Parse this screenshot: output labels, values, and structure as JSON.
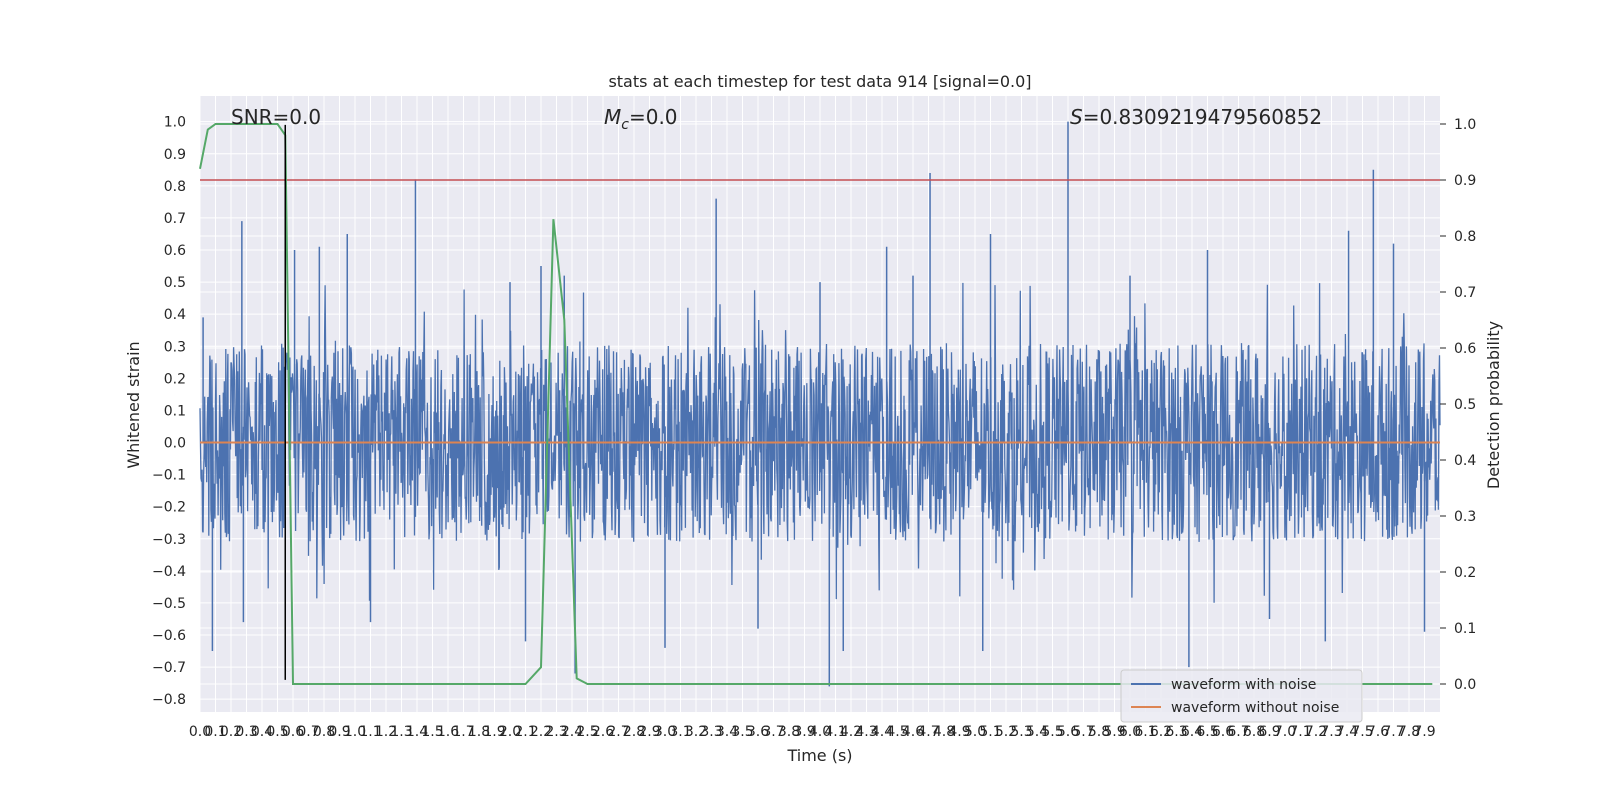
{
  "chart_data": {
    "type": "line",
    "title": "stats at each timestep for test data 914 [signal=0.0]",
    "xlabel": "Time (s)",
    "ylabel_left": "Whitened strain",
    "ylabel_right": "Detection probability",
    "xlim": [
      0.0,
      8.0
    ],
    "ylim_left": [
      -0.84,
      1.08
    ],
    "ylim_right": [
      -0.05,
      1.05
    ],
    "x_ticks": [
      0.0,
      0.1,
      0.2,
      0.3,
      0.4,
      0.5,
      0.6,
      0.7,
      0.8,
      0.9,
      1.0,
      1.1,
      1.2,
      1.3,
      1.4,
      1.5,
      1.6,
      1.7,
      1.8,
      1.9,
      2.0,
      2.1,
      2.2,
      2.3,
      2.4,
      2.5,
      2.6,
      2.7,
      2.8,
      2.9,
      3.0,
      3.1,
      3.2,
      3.3,
      3.4,
      3.5,
      3.6,
      3.7,
      3.8,
      3.9,
      4.0,
      4.1,
      4.2,
      4.3,
      4.4,
      4.5,
      4.6,
      4.7,
      4.8,
      4.9,
      5.0,
      5.1,
      5.2,
      5.3,
      5.4,
      5.5,
      5.6,
      5.7,
      5.8,
      5.9,
      6.0,
      6.1,
      6.2,
      6.3,
      6.4,
      6.5,
      6.6,
      6.7,
      6.8,
      6.9,
      7.0,
      7.1,
      7.2,
      7.3,
      7.4,
      7.5,
      7.6,
      7.7,
      7.8,
      7.9
    ],
    "x_tick_labels": [
      "0.0",
      "0.1",
      "0.2",
      "0.3",
      "0.4",
      "0.5",
      "0.6",
      "0.7",
      "0.8",
      "0.9",
      "1.0",
      "1.1",
      "1.2",
      "1.3",
      "1.4",
      "1.5",
      "1.6",
      "1.7",
      "1.8",
      "1.9",
      "2.0",
      "2.1",
      "2.2",
      "2.3",
      "2.4",
      "2.5",
      "2.6",
      "2.7",
      "2.8",
      "2.9",
      "3.0",
      "3.1",
      "3.2",
      "3.3",
      "3.4",
      "3.5",
      "3.6",
      "3.7",
      "3.8",
      "3.9",
      "4.0",
      "4.1",
      "4.2",
      "4.3",
      "4.4",
      "4.5",
      "4.6",
      "4.7",
      "4.8",
      "4.9",
      "5.0",
      "5.1",
      "5.2",
      "5.3",
      "5.4",
      "5.5",
      "5.6",
      "5.7",
      "5.8",
      "5.9",
      "6.0",
      "6.1",
      "6.2",
      "6.3",
      "6.4",
      "6.5",
      "6.6",
      "6.7",
      "6.8",
      "6.9",
      "7.0",
      "7.1",
      "7.2",
      "7.3",
      "7.4",
      "7.5",
      "7.6",
      "7.7",
      "7.8",
      "7.9"
    ],
    "y_left_ticks": [
      -0.8,
      -0.7,
      -0.6,
      -0.5,
      -0.4,
      -0.3,
      -0.2,
      -0.1,
      0.0,
      0.1,
      0.2,
      0.3,
      0.4,
      0.5,
      0.6,
      0.7,
      0.8,
      0.9,
      1.0
    ],
    "y_left_tick_labels": [
      "−0.8",
      "−0.7",
      "−0.6",
      "−0.5",
      "−0.4",
      "−0.3",
      "−0.2",
      "−0.1",
      "0.0",
      "0.1",
      "0.2",
      "0.3",
      "0.4",
      "0.5",
      "0.6",
      "0.7",
      "0.8",
      "0.9",
      "1.0"
    ],
    "y_right_ticks": [
      0.0,
      0.1,
      0.2,
      0.3,
      0.4,
      0.5,
      0.6,
      0.7,
      0.8,
      0.9,
      1.0
    ],
    "y_right_tick_labels": [
      "0.0",
      "0.1",
      "0.2",
      "0.3",
      "0.4",
      "0.5",
      "0.6",
      "0.7",
      "0.8",
      "0.9",
      "1.0"
    ],
    "grid": true,
    "legend_position": "bottom-right",
    "annotations": {
      "snr": "SNR=0.0",
      "mc_symbol": "M",
      "mc_sub": "c",
      "mc_value": "=0.0",
      "s_symbol": "S",
      "s_value": "=0.8309219479560852"
    },
    "series": [
      {
        "name": "waveform with noise",
        "axis": "left",
        "color": "#4c72b0",
        "kind": "noise",
        "band_low": -0.31,
        "band_high": 0.31,
        "peaks": [
          [
            0.02,
            0.39
          ],
          [
            0.27,
            0.69
          ],
          [
            0.61,
            0.6
          ],
          [
            0.77,
            0.61
          ],
          [
            0.95,
            0.65
          ],
          [
            1.39,
            0.82
          ],
          [
            2.0,
            0.5
          ],
          [
            2.2,
            0.55
          ],
          [
            2.35,
            0.52
          ],
          [
            3.33,
            0.76
          ],
          [
            4.0,
            0.5
          ],
          [
            4.43,
            0.61
          ],
          [
            4.6,
            0.52
          ],
          [
            4.71,
            0.84
          ],
          [
            5.1,
            0.65
          ],
          [
            5.6,
            1.0
          ],
          [
            6.0,
            0.52
          ],
          [
            6.5,
            0.6
          ],
          [
            7.41,
            0.66
          ],
          [
            7.57,
            0.85
          ],
          [
            7.7,
            0.62
          ]
        ],
        "troughs": [
          [
            0.08,
            -0.65
          ],
          [
            0.28,
            -0.56
          ],
          [
            0.55,
            -0.6
          ],
          [
            1.1,
            -0.56
          ],
          [
            2.1,
            -0.62
          ],
          [
            2.42,
            -0.72
          ],
          [
            3.0,
            -0.64
          ],
          [
            3.6,
            -0.58
          ],
          [
            4.06,
            -0.76
          ],
          [
            4.15,
            -0.65
          ],
          [
            5.05,
            -0.65
          ],
          [
            6.38,
            -0.7
          ],
          [
            6.9,
            -0.55
          ],
          [
            7.26,
            -0.62
          ],
          [
            7.9,
            -0.59
          ]
        ]
      },
      {
        "name": "waveform without noise",
        "axis": "left",
        "color": "#dd8452",
        "x": [
          0.0,
          8.0
        ],
        "y": [
          0.0,
          0.0
        ]
      },
      {
        "name": "",
        "axis": "right",
        "color": "#55a868",
        "x": [
          0.0,
          0.05,
          0.1,
          0.2,
          0.3,
          0.4,
          0.5,
          0.55,
          0.6,
          0.7,
          0.8,
          1.0,
          1.5,
          2.0,
          2.1,
          2.2,
          2.28,
          2.35,
          2.43,
          2.5,
          2.6,
          3.0,
          4.0,
          5.0,
          6.0,
          7.0,
          7.95
        ],
        "y": [
          0.92,
          0.99,
          1.0,
          1.0,
          1.0,
          1.0,
          1.0,
          0.98,
          0.0,
          0.0,
          0.0,
          0.0,
          0.0,
          0.0,
          0.0,
          0.03,
          0.83,
          0.65,
          0.01,
          0.0,
          0.0,
          0.0,
          0.0,
          0.0,
          0.0,
          0.0,
          0.0
        ]
      }
    ],
    "threshold": {
      "axis": "right",
      "y": 0.9,
      "color": "#c44e52"
    },
    "marker_line": {
      "x": 0.55,
      "y_left": [
        -0.74,
        0.99
      ],
      "color": "#000000"
    }
  }
}
